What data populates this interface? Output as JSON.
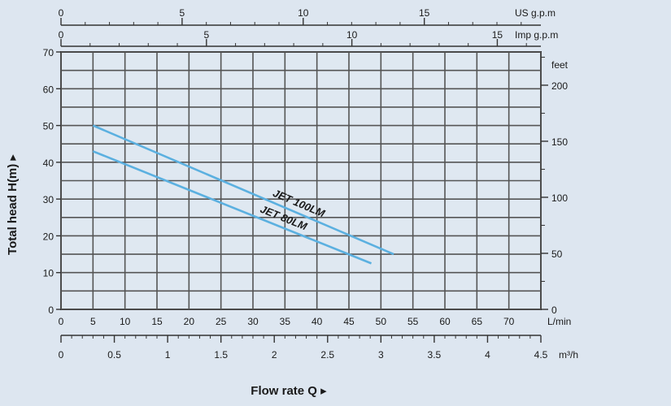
{
  "chart_data": {
    "type": "line",
    "title": "",
    "ylabel": "Total  head H(m) ▸",
    "xlabel": "Flow rate  Q ▸",
    "ylim": [
      0,
      70
    ],
    "xlim": [
      0,
      75
    ],
    "grid": true,
    "x_ticks": [
      "0",
      "5",
      "10",
      "15",
      "20",
      "25",
      "30",
      "35",
      "40",
      "45",
      "50",
      "55",
      "60",
      "65",
      "70"
    ],
    "x_unit": "L/min",
    "y_ticks": [
      "0",
      "10",
      "20",
      "30",
      "40",
      "50",
      "60",
      "70"
    ],
    "secondary_axes": {
      "us_gpm": {
        "unit": "US g.p.m",
        "ticks": [
          "0",
          "5",
          "10",
          "15"
        ]
      },
      "imp_gpm": {
        "unit": "Imp g.p.m",
        "ticks": [
          "0",
          "5",
          "10",
          "15"
        ]
      },
      "m3h": {
        "unit": "m³/h",
        "ticks": [
          "0",
          "0.5",
          "1",
          "1.5",
          "2",
          "2.5",
          "3",
          "3.5",
          "4",
          "4.5"
        ]
      },
      "feet": {
        "unit": "feet",
        "ticks": [
          "0",
          "50",
          "100",
          "150",
          "200"
        ]
      }
    },
    "series": [
      {
        "name": "JET 100LM",
        "x": [
          5,
          52
        ],
        "y": [
          50,
          15
        ],
        "color": "#5bb0e0"
      },
      {
        "name": "JET 80LM",
        "x": [
          5,
          48.5
        ],
        "y": [
          43,
          12.5
        ],
        "color": "#5bb0e0"
      }
    ]
  }
}
